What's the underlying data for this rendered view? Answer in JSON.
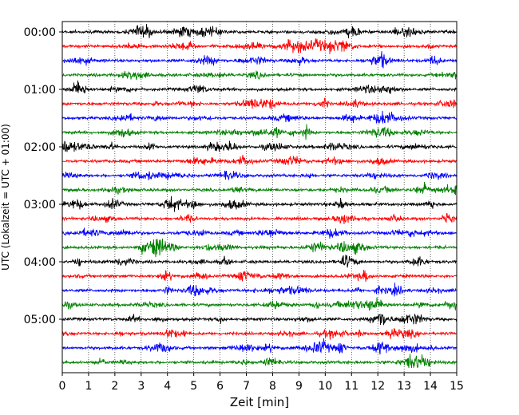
{
  "chart_data": {
    "type": "line",
    "title": "",
    "xlabel": "Zeit  [min]",
    "ylabel": "UTC (Lokalzeit = UTC + 01:00)",
    "xlim": [
      0,
      15
    ],
    "x_ticks": [
      0,
      1,
      2,
      3,
      4,
      5,
      6,
      7,
      8,
      9,
      10,
      11,
      12,
      13,
      14,
      15
    ],
    "x_tick_labels": [
      "0",
      "1",
      "2",
      "3",
      "4",
      "5",
      "6",
      "7",
      "8",
      "9",
      "10",
      "11",
      "12",
      "13",
      "14",
      "15"
    ],
    "y_tick_labels": [
      "00:00",
      "01:00",
      "02:00",
      "03:00",
      "04:00",
      "05:00"
    ],
    "vertical_grid": true,
    "grid_style": "dotted",
    "traces_per_hour": 4,
    "trace_minutes": 15,
    "trace_colors": [
      "#000000",
      "#ff0000",
      "#0000ff",
      "#008000"
    ],
    "trace_count": 24,
    "legend": "none"
  }
}
